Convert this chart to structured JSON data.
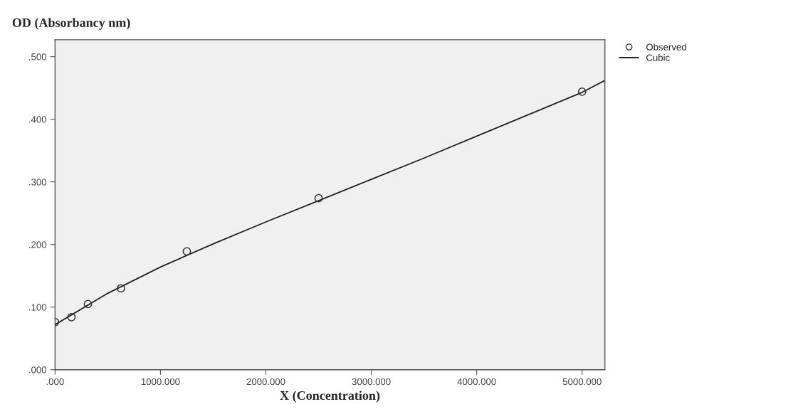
{
  "chart_data": {
    "type": "scatter",
    "xlabel": "X (Concentration)",
    "ylabel": "OD (Absorbancy nm)",
    "series": [
      {
        "name": "Observed",
        "color": "#333333",
        "marker": "circle",
        "x": [
          0,
          156,
          312,
          625,
          1250,
          2500,
          5000
        ],
        "values": [
          0.076,
          0.084,
          0.105,
          0.13,
          0.189,
          0.274,
          0.444
        ]
      },
      {
        "name": "Cubic",
        "type": "line",
        "color": "#222222",
        "marker": "none",
        "line_style": "solid",
        "x": [
          0,
          500,
          1000,
          1500,
          2000,
          2500,
          3000,
          3500,
          4000,
          4500,
          5000,
          5216
        ],
        "values": [
          0.072,
          0.122,
          0.164,
          0.201,
          0.236,
          0.27,
          0.304,
          0.338,
          0.373,
          0.408,
          0.443,
          0.462
        ]
      }
    ],
    "xlim": [
      0,
      5216
    ],
    "ylim": [
      0,
      0.527
    ],
    "xticks": [
      {
        "value": 0,
        "label": ".000"
      },
      {
        "value": 1000,
        "label": "1000.000"
      },
      {
        "value": 2000,
        "label": "2000.000"
      },
      {
        "value": 3000,
        "label": "3000.000"
      },
      {
        "value": 4000,
        "label": "4000.000"
      },
      {
        "value": 5000,
        "label": "5000.000"
      }
    ],
    "yticks": [
      {
        "value": 0,
        "label": ".000"
      },
      {
        "value": 0.1,
        "label": ".100"
      },
      {
        "value": 0.2,
        "label": ".200"
      },
      {
        "value": 0.3,
        "label": ".300"
      },
      {
        "value": 0.4,
        "label": ".400"
      },
      {
        "value": 0.5,
        "label": ".500"
      }
    ],
    "grid": false,
    "legend": "top right"
  }
}
